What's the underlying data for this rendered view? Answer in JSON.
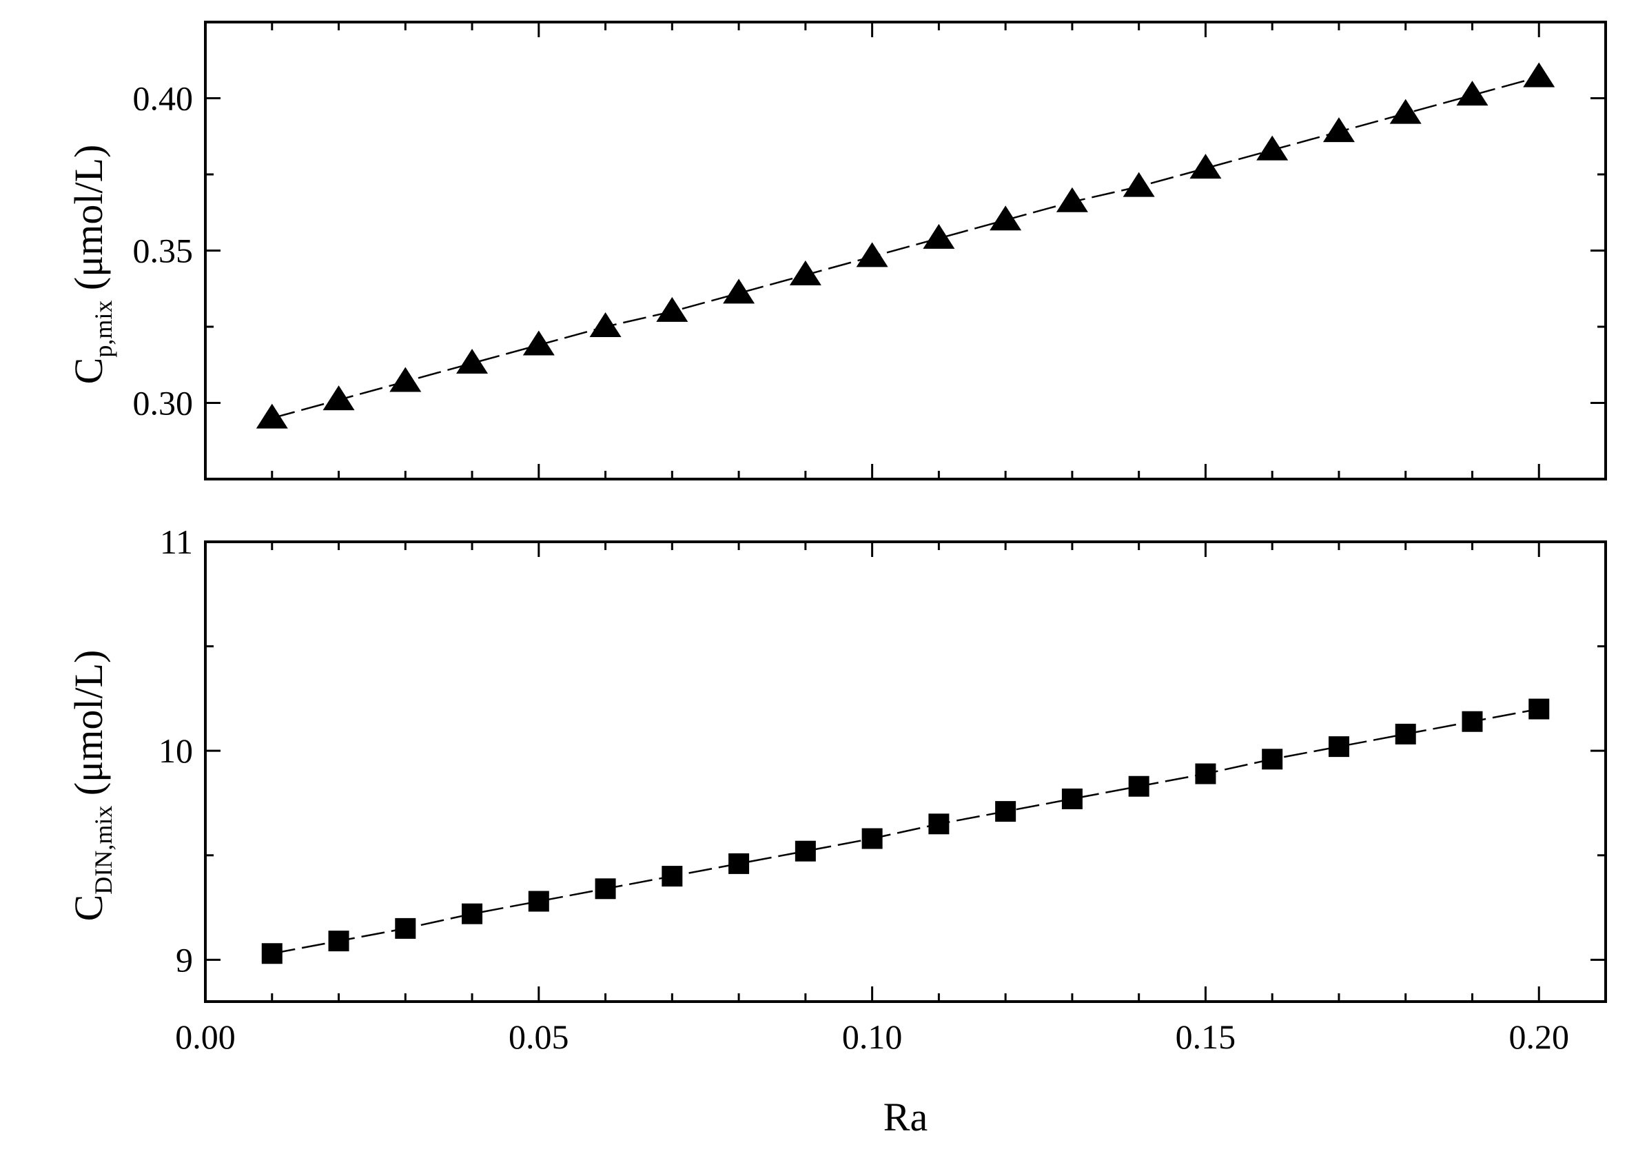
{
  "figure": {
    "background": "#ffffff",
    "ink": "#000000"
  },
  "chart_data": [
    {
      "type": "line",
      "panel": "top",
      "marker": "triangle",
      "line_style": "dashed",
      "ylabel_main": "C",
      "ylabel_sub": "p,mix",
      "ylabel_unit": " (μmol/L)",
      "xlabel": "",
      "xlim": [
        0.0,
        0.21
      ],
      "ylim": [
        0.275,
        0.425
      ],
      "yticks": [
        0.3,
        0.35,
        0.4
      ],
      "ytick_labels": [
        "0.30",
        "0.35",
        "0.40"
      ],
      "x": [
        0.01,
        0.02,
        0.03,
        0.04,
        0.05,
        0.06,
        0.07,
        0.08,
        0.09,
        0.1,
        0.11,
        0.12,
        0.13,
        0.14,
        0.15,
        0.16,
        0.17,
        0.18,
        0.19,
        0.2
      ],
      "y": [
        0.295,
        0.301,
        0.307,
        0.313,
        0.319,
        0.325,
        0.33,
        0.336,
        0.342,
        0.348,
        0.354,
        0.36,
        0.366,
        0.371,
        0.377,
        0.383,
        0.389,
        0.395,
        0.401,
        0.407
      ]
    },
    {
      "type": "line",
      "panel": "bottom",
      "marker": "square",
      "line_style": "dashed",
      "ylabel_main": "C",
      "ylabel_sub": "DIN,mix",
      "ylabel_unit": " (μmol/L)",
      "xlabel": "Ra",
      "xlim": [
        0.0,
        0.21
      ],
      "ylim": [
        8.8,
        11.0
      ],
      "yticks": [
        9,
        10,
        11
      ],
      "ytick_labels": [
        "9",
        "10",
        "11"
      ],
      "xticks": [
        0.0,
        0.05,
        0.1,
        0.15,
        0.2
      ],
      "xtick_labels": [
        "0.00",
        "0.05",
        "0.10",
        "0.15",
        "0.20"
      ],
      "x": [
        0.01,
        0.02,
        0.03,
        0.04,
        0.05,
        0.06,
        0.07,
        0.08,
        0.09,
        0.1,
        0.11,
        0.12,
        0.13,
        0.14,
        0.15,
        0.16,
        0.17,
        0.18,
        0.19,
        0.2
      ],
      "y": [
        9.03,
        9.09,
        9.15,
        9.22,
        9.28,
        9.34,
        9.4,
        9.46,
        9.52,
        9.58,
        9.65,
        9.71,
        9.77,
        9.83,
        9.89,
        9.96,
        10.02,
        10.08,
        10.14,
        10.2
      ]
    }
  ]
}
